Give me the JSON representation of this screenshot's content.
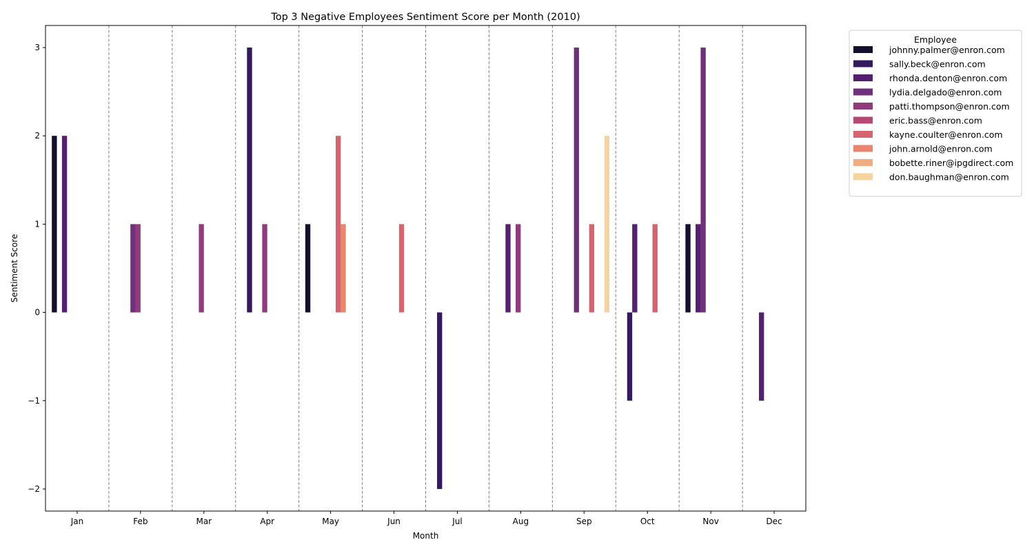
{
  "chart_data": {
    "type": "bar",
    "title": "Top 3 Negative Employees Sentiment Score per Month (2010)",
    "xlabel": "Month",
    "ylabel": "Sentiment Score",
    "categories": [
      "Jan",
      "Feb",
      "Mar",
      "Apr",
      "May",
      "Jun",
      "Jul",
      "Aug",
      "Sep",
      "Oct",
      "Nov",
      "Dec"
    ],
    "ylim": [
      -2.25,
      3.25
    ],
    "yticks": [
      -2,
      -1,
      0,
      1,
      2,
      3
    ],
    "legend_title": "Employee",
    "legend_position": "outside-top-right",
    "grid": "vertical dashed separators between months",
    "series": [
      {
        "name": "johnny.palmer@enron.com",
        "color": "#150f2e",
        "values": [
          2,
          null,
          null,
          null,
          1,
          null,
          null,
          null,
          null,
          null,
          1,
          null
        ]
      },
      {
        "name": "sally.beck@enron.com",
        "color": "#341a5c",
        "values": [
          null,
          null,
          null,
          3,
          null,
          null,
          -2,
          null,
          null,
          -1,
          null,
          null
        ]
      },
      {
        "name": "rhonda.denton@enron.com",
        "color": "#55206f",
        "values": [
          2,
          null,
          null,
          null,
          null,
          null,
          null,
          1,
          null,
          1,
          1,
          -1
        ]
      },
      {
        "name": "lydia.delgado@enron.com",
        "color": "#71307b",
        "values": [
          null,
          1,
          null,
          null,
          null,
          null,
          null,
          null,
          3,
          null,
          3,
          null
        ]
      },
      {
        "name": "patti.thompson@enron.com",
        "color": "#8f3b7d",
        "values": [
          null,
          1,
          1,
          1,
          null,
          null,
          null,
          1,
          null,
          null,
          null,
          null
        ]
      },
      {
        "name": "eric.bass@enron.com",
        "color": "#b44a73",
        "values": [
          null,
          null,
          null,
          null,
          null,
          null,
          null,
          null,
          null,
          null,
          null,
          null
        ]
      },
      {
        "name": "kayne.coulter@enron.com",
        "color": "#d6646e",
        "values": [
          null,
          null,
          null,
          null,
          2,
          1,
          null,
          null,
          1,
          1,
          null,
          null
        ]
      },
      {
        "name": "john.arnold@enron.com",
        "color": "#e8856c",
        "values": [
          null,
          null,
          null,
          null,
          1,
          null,
          null,
          null,
          null,
          null,
          null,
          null
        ]
      },
      {
        "name": "bobette.riner@ipgdirect.com",
        "color": "#efad81",
        "values": [
          null,
          null,
          null,
          null,
          null,
          null,
          null,
          null,
          null,
          null,
          null,
          null
        ]
      },
      {
        "name": "don.baughman@enron.com",
        "color": "#f4d39e",
        "values": [
          null,
          null,
          null,
          null,
          null,
          null,
          null,
          null,
          2,
          null,
          null,
          null
        ]
      }
    ]
  }
}
